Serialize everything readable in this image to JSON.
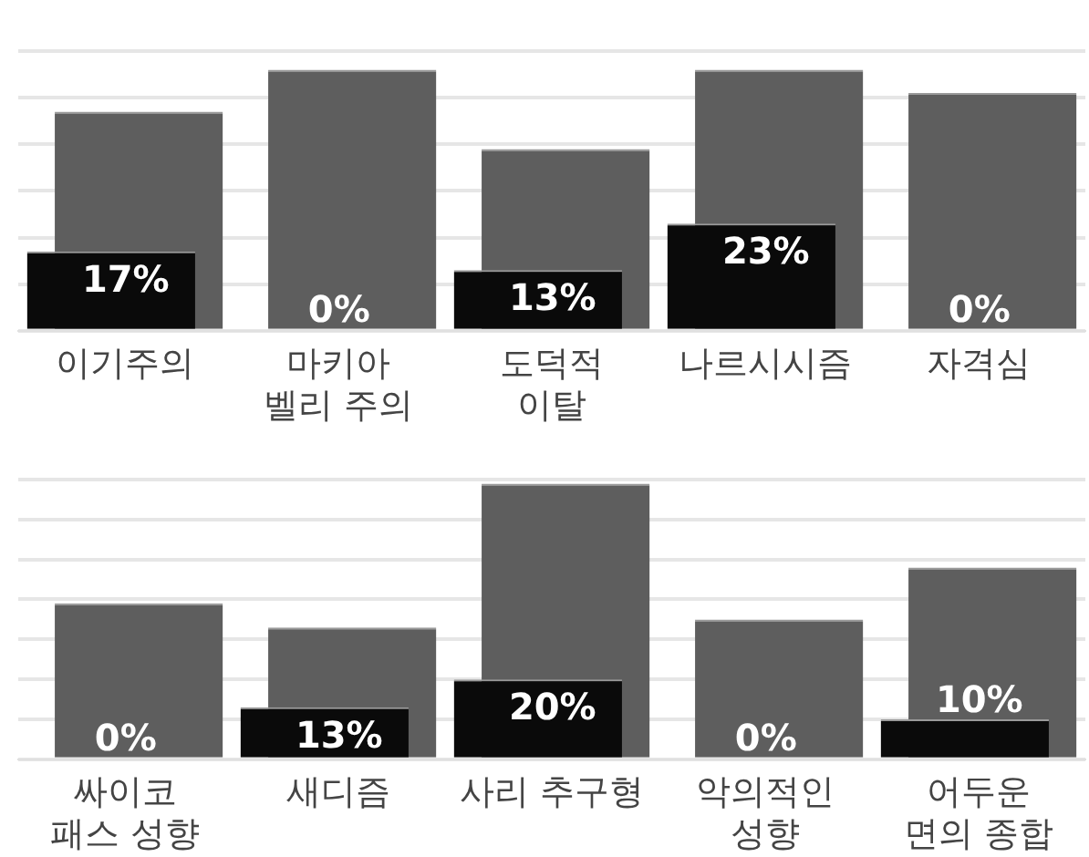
{
  "chart_data": [
    {
      "type": "bar",
      "categories": [
        "이기주의",
        "마키아\n벨리 주의",
        "도덕적\n이탈",
        "나르시시즘",
        "자격심"
      ],
      "series": [
        {
          "color": "#0a0a0a",
          "values": [
            17,
            0,
            13,
            23,
            0
          ],
          "value_labels": [
            "17%",
            "0%",
            "13%",
            "23%",
            "0%"
          ]
        },
        {
          "color": "#5e5e5e",
          "values": [
            47,
            56,
            39,
            56,
            51
          ]
        }
      ],
      "tick_labels": "x",
      "grid": "y",
      "legend": false
    },
    {
      "type": "bar",
      "categories": [
        "싸이코\n패스 성향",
        "새디즘",
        "사리 추구형",
        "악의적인\n성향",
        "어두운\n면의 종합"
      ],
      "series": [
        {
          "color": "#0a0a0a",
          "values": [
            0,
            13,
            20,
            0,
            10
          ],
          "value_labels": [
            "0%",
            "13%",
            "20%",
            "0%",
            "10%"
          ]
        },
        {
          "color": "#5e5e5e",
          "values": [
            39,
            33,
            69,
            35,
            48
          ]
        }
      ],
      "tick_labels": "x",
      "grid": "y",
      "legend": false
    }
  ]
}
